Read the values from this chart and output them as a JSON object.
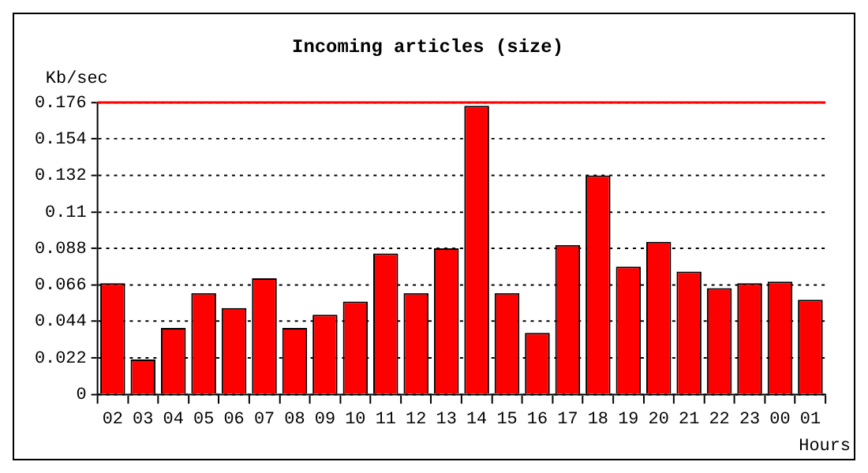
{
  "chart_data": {
    "type": "bar",
    "title": "Incoming articles (size)",
    "ylabel": "Kb/sec",
    "xlabel": "Hours",
    "categories": [
      "02",
      "03",
      "04",
      "05",
      "06",
      "07",
      "08",
      "09",
      "10",
      "11",
      "12",
      "13",
      "14",
      "15",
      "16",
      "17",
      "18",
      "19",
      "20",
      "21",
      "22",
      "23",
      "00",
      "01"
    ],
    "values": [
      0.067,
      0.021,
      0.04,
      0.061,
      0.052,
      0.07,
      0.04,
      0.048,
      0.056,
      0.085,
      0.061,
      0.088,
      0.174,
      0.061,
      0.037,
      0.09,
      0.132,
      0.077,
      0.092,
      0.074,
      0.064,
      0.067,
      0.068,
      0.057
    ],
    "color": "#ff0000",
    "ylim": [
      0,
      0.176
    ],
    "yticks": [
      0,
      0.022,
      0.044,
      0.066,
      0.088,
      0.11,
      0.132,
      0.154,
      0.176
    ],
    "grid": "y",
    "legend": false,
    "ref_lines": [
      {
        "axis": "y",
        "value": 0.176,
        "color": "#ff0000",
        "line_style": "solid"
      }
    ]
  }
}
